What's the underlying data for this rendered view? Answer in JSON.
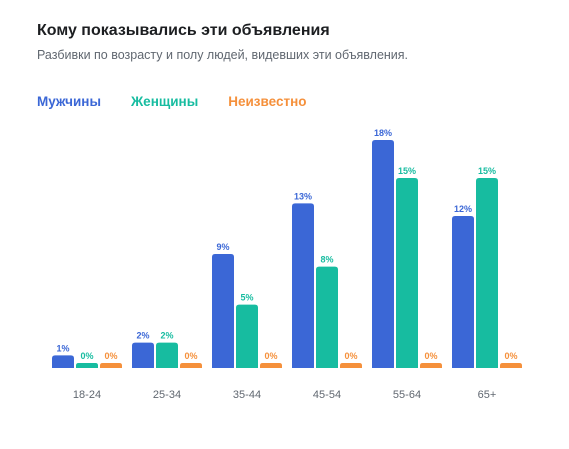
{
  "header": {
    "title": "Кому показывались эти объявления",
    "subtitle": "Разбивки по возрасту и полу людей, видевших эти объявления."
  },
  "colors": {
    "men": "#3b67d6",
    "women": "#17bca0",
    "unknown": "#f5903b"
  },
  "chart_data": {
    "type": "bar",
    "categories": [
      "18-24",
      "25-34",
      "35-44",
      "45-54",
      "55-64",
      "65+"
    ],
    "series": [
      {
        "name": "Мужчины",
        "values": [
          1,
          2,
          9,
          13,
          18,
          12
        ],
        "labels": [
          "1%",
          "2%",
          "9%",
          "13%",
          "18%",
          "12%"
        ]
      },
      {
        "name": "Женщины",
        "values": [
          0,
          2,
          5,
          8,
          15,
          15
        ],
        "labels": [
          "0%",
          "2%",
          "5%",
          "8%",
          "15%",
          "15%"
        ]
      },
      {
        "name": "Неизвестно",
        "values": [
          0,
          0,
          0,
          0,
          0,
          0
        ],
        "labels": [
          "0%",
          "0%",
          "0%",
          "0%",
          "0%",
          "0%"
        ]
      }
    ],
    "unit": "%",
    "ylim": [
      0,
      18
    ],
    "legend_position": "top-left",
    "grid": false
  }
}
